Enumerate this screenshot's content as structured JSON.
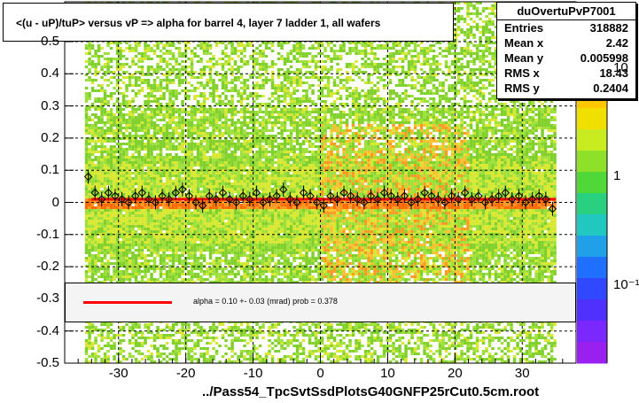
{
  "title": "<(u - uP)/tuP> versus   vP => alpha for barrel 4, layer 7 ladder 1, all wafers",
  "stats": {
    "name": "duOvertuPvP7001",
    "rows": [
      {
        "key": "Entries",
        "value": "318882"
      },
      {
        "key": "Mean x",
        "value": "2.42"
      },
      {
        "key": "Mean y",
        "value": "0.005998"
      },
      {
        "key": "RMS x",
        "value": "18.43"
      },
      {
        "key": "RMS y",
        "value": "0.2404"
      }
    ]
  },
  "fit_text": "alpha =     0.10 +-  0.03 (mrad) prob = 0.378",
  "footer": "../Pass54_TpcSvtSsdPlotsG40GNFP25rCut0.5cm.root",
  "colors": {
    "fit_line": "#ff0000",
    "band_green": "#7fd02a",
    "band_yellow": "#d8e830",
    "band_orange": "#ff9a20",
    "palette_violet": "#7a28ff"
  },
  "chart_data": {
    "type": "heatmap",
    "xlim": [
      -38,
      38
    ],
    "ylim": [
      -0.5,
      0.5
    ],
    "x_ticks": [
      "-30",
      "-20",
      "-10",
      "0",
      "10",
      "20",
      "30"
    ],
    "y_ticks": [
      "-0.5",
      "-0.4",
      "-0.3",
      "-0.2",
      "-0.1",
      "0",
      "0.1",
      "0.2",
      "0.3",
      "0.4",
      "0.5"
    ],
    "z_ticks": [
      "10",
      "1",
      "10⁻¹"
    ],
    "fit_line": {
      "x": [
        -34,
        35
      ],
      "y": [
        0.01,
        0.01
      ]
    },
    "profile_points": {
      "x": [
        -34.5,
        -33.5,
        -32.5,
        -31.5,
        -30.5,
        -29.5,
        -28.5,
        -27.5,
        -26.5,
        -25.5,
        -24.5,
        -23.5,
        -22.5,
        -21.5,
        -20.5,
        -19.5,
        -18.5,
        -17.5,
        -16.5,
        -15.5,
        -14.5,
        -13.5,
        -12.5,
        -11.5,
        -10.5,
        -9.5,
        -8.5,
        -7.5,
        -6.5,
        -5.5,
        -4.5,
        -3.5,
        -2.5,
        -1.5,
        -0.5,
        0.5,
        1.5,
        2.5,
        3.5,
        4.5,
        5.5,
        6.5,
        7.5,
        8.5,
        9.5,
        10.5,
        11.5,
        12.5,
        13.5,
        14.5,
        15.5,
        16.5,
        17.5,
        18.5,
        19.5,
        20.5,
        21.5,
        22.5,
        23.5,
        24.5,
        25.5,
        26.5,
        27.5,
        28.5,
        29.5,
        30.5,
        31.5,
        32.5,
        33.5,
        34.5
      ],
      "y": [
        0.08,
        0.03,
        0.01,
        0.03,
        0.02,
        0.01,
        0.0,
        0.02,
        0.03,
        0.01,
        0.0,
        0.02,
        0.01,
        0.03,
        0.04,
        0.02,
        0.0,
        -0.01,
        0.02,
        0.01,
        0.03,
        0.01,
        0.0,
        0.02,
        0.01,
        0.03,
        0.0,
        0.01,
        0.02,
        0.04,
        0.01,
        0.0,
        0.03,
        0.02,
        0.0,
        -0.01,
        0.02,
        0.01,
        0.03,
        0.02,
        0.01,
        0.0,
        0.02,
        0.01,
        0.03,
        0.02,
        0.01,
        0.02,
        0.0,
        0.01,
        0.03,
        0.02,
        0.01,
        0.0,
        0.02,
        0.01,
        0.03,
        0.01,
        0.02,
        0.0,
        0.01,
        0.02,
        0.03,
        0.01,
        0.02,
        0.0,
        0.01,
        0.02,
        0.01,
        -0.02
      ]
    }
  }
}
